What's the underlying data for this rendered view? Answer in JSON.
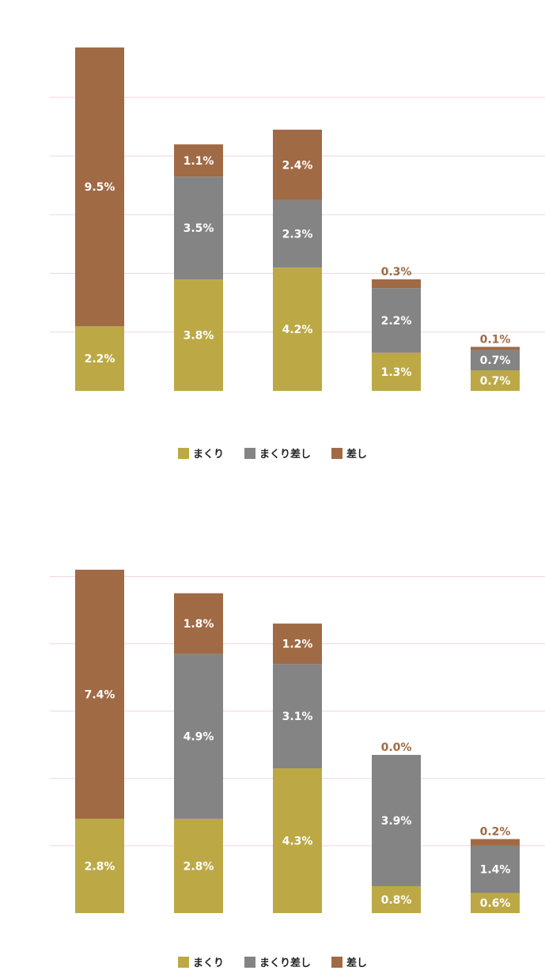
{
  "colors": {
    "makuri": "#bca946",
    "makuri_sashi": "#848484",
    "sashi": "#a06a45",
    "grid": "#f2d6dc"
  },
  "legend": {
    "makuri": "まくり",
    "makuri_sashi": "まくり差し",
    "sashi": "差し"
  },
  "chart_data": [
    {
      "type": "bar",
      "stacked": true,
      "ylim": [
        0,
        11.7
      ],
      "grid": true,
      "legend_position": "bottom-center",
      "categories": [
        "",
        "",
        "",
        "",
        ""
      ],
      "series": [
        {
          "name": "まくり",
          "values": [
            2.2,
            3.8,
            4.2,
            1.3,
            0.7
          ],
          "labels": [
            "2.2%",
            "3.8%",
            "4.2%",
            "1.3%",
            "0.7%"
          ]
        },
        {
          "name": "まくり差し",
          "values": [
            0,
            3.5,
            2.3,
            2.2,
            0.7
          ],
          "labels": [
            "",
            "3.5%",
            "2.3%",
            "2.2%",
            "0.7%"
          ]
        },
        {
          "name": "差し",
          "values": [
            9.5,
            1.1,
            2.4,
            0.3,
            0.1
          ],
          "labels": [
            "9.5%",
            "1.1%",
            "2.4%",
            "0.3%",
            "0.1%"
          ]
        }
      ]
    },
    {
      "type": "bar",
      "stacked": true,
      "ylim": [
        0,
        10.2
      ],
      "grid": true,
      "legend_position": "bottom-center",
      "categories": [
        "",
        "",
        "",
        "",
        ""
      ],
      "series": [
        {
          "name": "まくり",
          "values": [
            2.8,
            2.8,
            4.3,
            0.8,
            0.6
          ],
          "labels": [
            "2.8%",
            "2.8%",
            "4.3%",
            "0.8%",
            "0.6%"
          ]
        },
        {
          "name": "まくり差し",
          "values": [
            0,
            4.9,
            3.1,
            3.9,
            1.4
          ],
          "labels": [
            "",
            "4.9%",
            "3.1%",
            "3.9%",
            "1.4%"
          ]
        },
        {
          "name": "差し",
          "values": [
            7.4,
            1.8,
            1.2,
            0.0,
            0.2
          ],
          "labels": [
            "7.4%",
            "1.8%",
            "1.2%",
            "0.0%",
            "0.2%"
          ]
        }
      ]
    }
  ]
}
